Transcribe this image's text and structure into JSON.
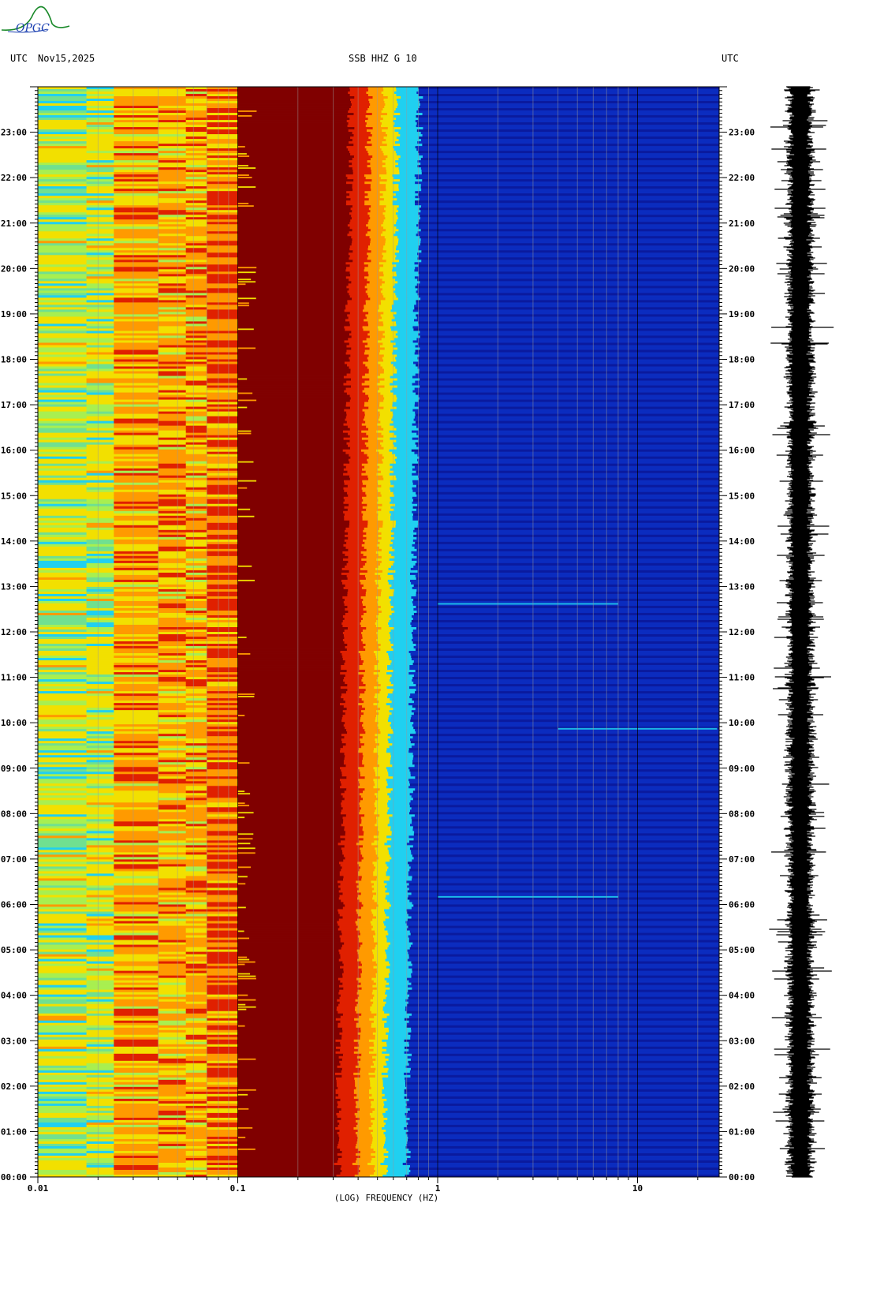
{
  "header": {
    "tz_left": "UTC",
    "date": "Nov15,2025",
    "station": "SSB HHZ G 10",
    "tz_right": "UTC"
  },
  "logo": {
    "text": "OPGC"
  },
  "colors": {
    "dark_red": "#800000",
    "red": "#e02000",
    "orange": "#ff9a00",
    "yellow": "#f2e000",
    "light_green": "#a8ef50",
    "green": "#70e090",
    "cyan": "#20d0f0",
    "blue": "#0b2cbf",
    "deep_blue": "#0a1a9e",
    "logo_green": "#1a8a2a",
    "logo_blue": "#1a3fb0"
  },
  "chart_data": {
    "type": "heatmap",
    "title": "SSB HHZ G 10",
    "xlabel": "(LOG) FREQUENCY (HZ)",
    "x_scale": "log",
    "xlim": [
      0.01,
      25
    ],
    "x_ticks": [
      {
        "value": 0.01,
        "label": "0.01"
      },
      {
        "value": 0.1,
        "label": "0.1"
      },
      {
        "value": 1,
        "label": "1"
      },
      {
        "value": 10,
        "label": "10"
      }
    ],
    "ylabel": "UTC",
    "y_ticks": [
      "00:00",
      "01:00",
      "02:00",
      "03:00",
      "04:00",
      "05:00",
      "06:00",
      "07:00",
      "08:00",
      "09:00",
      "10:00",
      "11:00",
      "12:00",
      "13:00",
      "14:00",
      "15:00",
      "16:00",
      "17:00",
      "18:00",
      "19:00",
      "20:00",
      "21:00",
      "22:00",
      "23:00"
    ],
    "ylim_hours": [
      0,
      24
    ],
    "bands": [
      {
        "from_hz": 0.01,
        "to_hz": 0.024,
        "description": "yellow-green with cyan streaks"
      },
      {
        "from_hz": 0.024,
        "to_hz": 0.07,
        "description": "orange-yellow with red streaks"
      },
      {
        "from_hz": 0.07,
        "to_hz": 0.1,
        "description": "red-orange"
      },
      {
        "from_hz": 0.1,
        "to_hz": 0.3,
        "description": "saturated dark red (microseism)"
      },
      {
        "from_hz": 0.3,
        "to_hz": 0.75,
        "description": "transition red to cyan to blue"
      },
      {
        "from_hz": 0.75,
        "to_hz": 25,
        "description": "low energy blue"
      }
    ],
    "events": [
      {
        "time_utc": "06:10",
        "from_hz": 1.0,
        "to_hz": 8.0
      },
      {
        "time_utc": "09:52",
        "from_hz": 4.0,
        "to_hz": 25.0
      },
      {
        "time_utc": "12:37",
        "from_hz": 1.0,
        "to_hz": 8.0
      }
    ],
    "seismogram": "continuous background noise trace, 00:00-24:00"
  }
}
